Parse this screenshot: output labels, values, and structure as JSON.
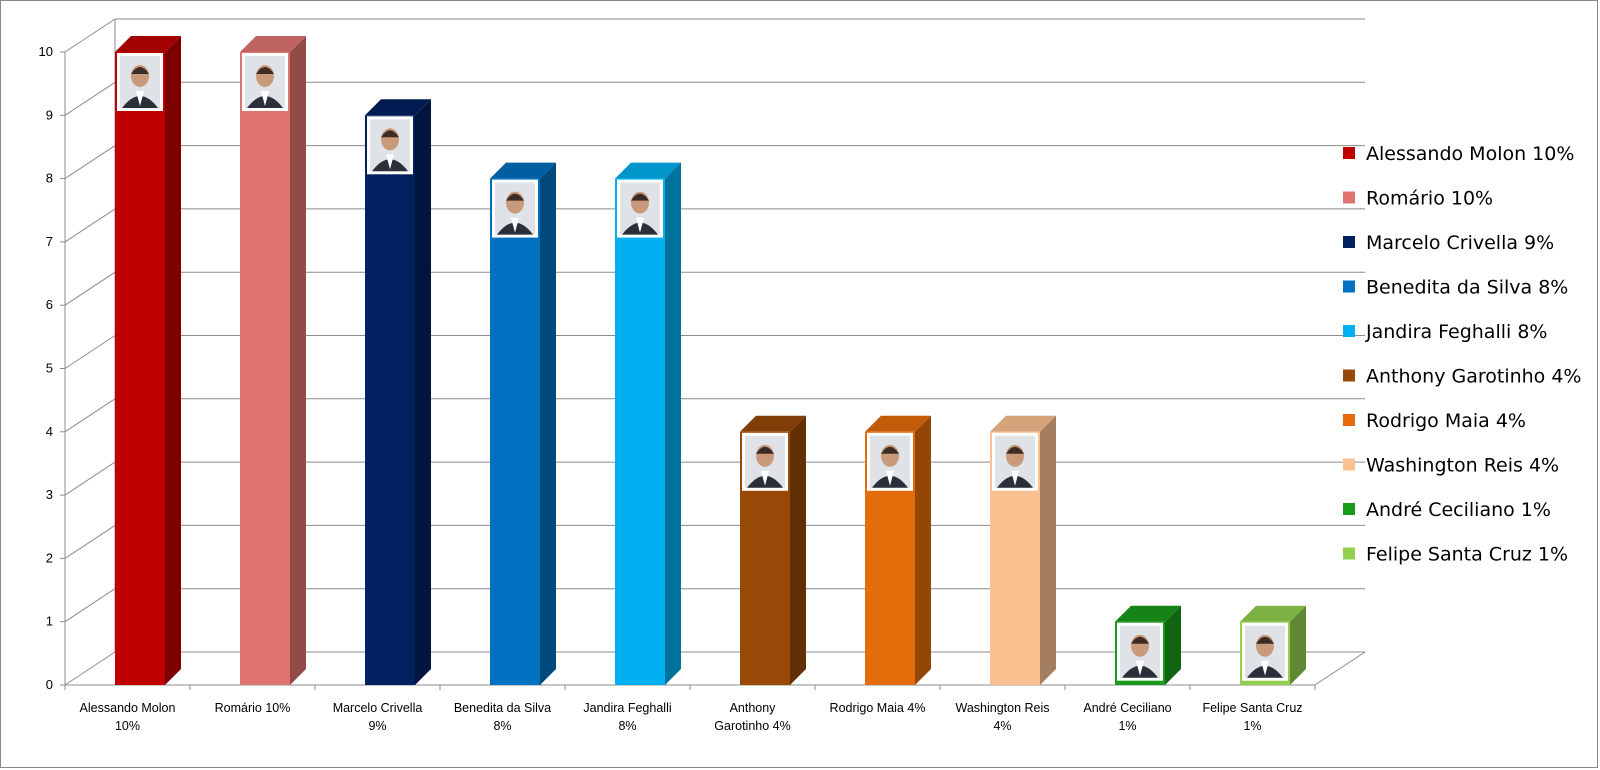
{
  "chart_data": {
    "type": "bar",
    "title": "",
    "xlabel": "",
    "ylabel": "",
    "ylim": [
      0,
      10
    ],
    "yticks": [
      0,
      1,
      2,
      3,
      4,
      5,
      6,
      7,
      8,
      9,
      10
    ],
    "grid": true,
    "legend_position": "right",
    "categories": [
      "Alessando Molon 10%",
      "Romário 10%",
      "Marcelo Crivella 9%",
      "Benedita da Silva 8%",
      "Jandira Feghalli 8%",
      "Anthony Garotinho 4%",
      "Rodrigo Maia 4%",
      "Washington Reis 4%",
      "André Ceciliano 1%",
      "Felipe Santa Cruz 1%"
    ],
    "category_labels": [
      [
        "Alessando Molon",
        "10%"
      ],
      [
        "Romário 10%"
      ],
      [
        "Marcelo Crivella",
        "9%"
      ],
      [
        "Benedita da Silva",
        "8%"
      ],
      [
        "Jandira Feghalli",
        "8%"
      ],
      [
        "Anthony",
        "Garotinho 4%"
      ],
      [
        "Rodrigo Maia 4%"
      ],
      [
        "Washington Reis",
        "4%"
      ],
      [
        "André Ceciliano",
        "1%"
      ],
      [
        "Felipe Santa Cruz",
        "1%"
      ]
    ],
    "values": [
      10,
      10,
      9,
      8,
      8,
      4,
      4,
      4,
      1,
      1
    ],
    "colors": [
      "#c00000",
      "#e07470",
      "#002060",
      "#0070c0",
      "#00b0f0",
      "#984807",
      "#e46c0a",
      "#fac090",
      "#1a9a1a",
      "#92d050"
    ],
    "has_photo": [
      true,
      true,
      true,
      true,
      true,
      true,
      true,
      true,
      true,
      true
    ],
    "legend": [
      "Alessando Molon 10%",
      "Romário 10%",
      "Marcelo Crivella 9%",
      "Benedita da Silva 8%",
      "Jandira Feghalli 8%",
      "Anthony Garotinho 4%",
      "Rodrigo Maia 4%",
      "Washington Reis 4%",
      "André Ceciliano 1%",
      "Felipe Santa Cruz 1%"
    ]
  }
}
